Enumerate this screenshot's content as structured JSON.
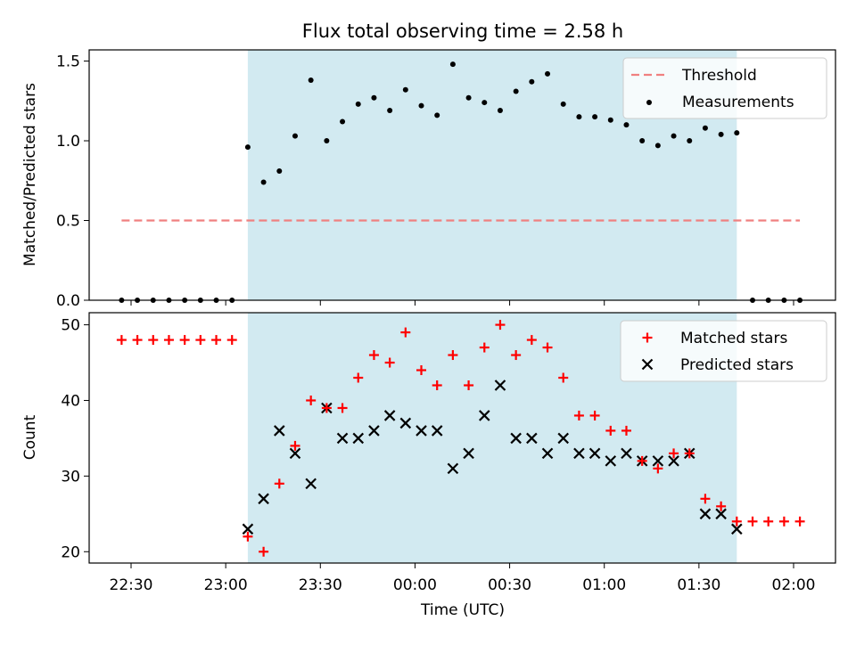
{
  "colors": {
    "shade": "#add8e6",
    "threshold": "#f08080",
    "matched": "#ff0000",
    "predicted": "#000000",
    "measure": "#000000"
  },
  "chart_data": [
    {
      "type": "scatter",
      "title": "Flux total observing time = 2.58 h",
      "xlabel": "",
      "ylabel": "Matched/Predicted stars",
      "ylim": [
        0,
        1.57
      ],
      "yticks": [
        "0.0",
        "0.5",
        "1.0",
        "1.5"
      ],
      "legend_position": "top-right",
      "shaded_span": [
        "23:07",
        "01:42"
      ],
      "threshold": {
        "name": "Threshold",
        "value": 0.5,
        "x_range": [
          "22:27",
          "02:02"
        ],
        "style": "dashed"
      },
      "series": [
        {
          "name": "Measurements",
          "times": [
            "22:27",
            "22:32",
            "22:37",
            "22:42",
            "22:47",
            "22:52",
            "22:57",
            "23:02",
            "23:07",
            "23:12",
            "23:17",
            "23:22",
            "23:27",
            "23:32",
            "23:37",
            "23:42",
            "23:47",
            "23:52",
            "23:57",
            "00:02",
            "00:07",
            "00:12",
            "00:17",
            "00:22",
            "00:27",
            "00:32",
            "00:37",
            "00:42",
            "00:47",
            "00:52",
            "00:57",
            "01:02",
            "01:07",
            "01:12",
            "01:17",
            "01:22",
            "01:27",
            "01:32",
            "01:37",
            "01:42",
            "01:47",
            "01:52",
            "01:57",
            "02:02"
          ],
          "values": [
            0,
            0,
            0,
            0,
            0,
            0,
            0,
            0,
            0.96,
            0.74,
            0.81,
            1.03,
            1.38,
            1.0,
            1.12,
            1.23,
            1.27,
            1.19,
            1.32,
            1.22,
            1.16,
            1.48,
            1.27,
            1.24,
            1.19,
            1.31,
            1.37,
            1.42,
            1.23,
            1.15,
            1.15,
            1.13,
            1.1,
            1.0,
            0.97,
            1.03,
            1.0,
            1.08,
            1.04,
            1.05,
            0,
            0,
            0,
            0
          ]
        }
      ]
    },
    {
      "type": "scatter",
      "title": "",
      "xlabel": "Time (UTC)",
      "ylabel": "Count",
      "ylim": [
        18.5,
        51.6
      ],
      "yticks": [
        "20",
        "30",
        "40",
        "50"
      ],
      "xticks": [
        "22:30",
        "23:00",
        "23:30",
        "00:00",
        "00:30",
        "01:00",
        "01:30",
        "02:00"
      ],
      "legend_position": "top-right",
      "shaded_span": [
        "23:07",
        "01:42"
      ],
      "series": [
        {
          "name": "Matched stars",
          "marker": "plus",
          "times": [
            "22:27",
            "22:32",
            "22:37",
            "22:42",
            "22:47",
            "22:52",
            "22:57",
            "23:02",
            "23:07",
            "23:12",
            "23:17",
            "23:22",
            "23:27",
            "23:32",
            "23:37",
            "23:42",
            "23:47",
            "23:52",
            "23:57",
            "00:02",
            "00:07",
            "00:12",
            "00:17",
            "00:22",
            "00:27",
            "00:32",
            "00:37",
            "00:42",
            "00:47",
            "00:52",
            "00:57",
            "01:02",
            "01:07",
            "01:12",
            "01:17",
            "01:22",
            "01:27",
            "01:32",
            "01:37",
            "01:42",
            "01:47",
            "01:52",
            "01:57",
            "02:02"
          ],
          "values": [
            48,
            48,
            48,
            48,
            48,
            48,
            48,
            48,
            22,
            20,
            29,
            34,
            40,
            39,
            39,
            43,
            46,
            45,
            49,
            44,
            42,
            46,
            42,
            47,
            50,
            46,
            48,
            47,
            43,
            38,
            38,
            36,
            36,
            32,
            31,
            33,
            33,
            27,
            26,
            24,
            24,
            24,
            24,
            24
          ]
        },
        {
          "name": "Predicted stars",
          "marker": "x",
          "times": [
            "23:07",
            "23:12",
            "23:17",
            "23:22",
            "23:27",
            "23:32",
            "23:37",
            "23:42",
            "23:47",
            "23:52",
            "23:57",
            "00:02",
            "00:07",
            "00:12",
            "00:17",
            "00:22",
            "00:27",
            "00:32",
            "00:37",
            "00:42",
            "00:47",
            "00:52",
            "00:57",
            "01:02",
            "01:07",
            "01:12",
            "01:17",
            "01:22",
            "01:27",
            "01:32",
            "01:37",
            "01:42"
          ],
          "values": [
            23,
            27,
            36,
            33,
            29,
            39,
            35,
            35,
            36,
            38,
            37,
            36,
            36,
            31,
            33,
            38,
            42,
            35,
            35,
            33,
            35,
            33,
            33,
            32,
            33,
            32,
            32,
            32,
            33,
            25,
            25,
            23
          ]
        }
      ]
    }
  ]
}
